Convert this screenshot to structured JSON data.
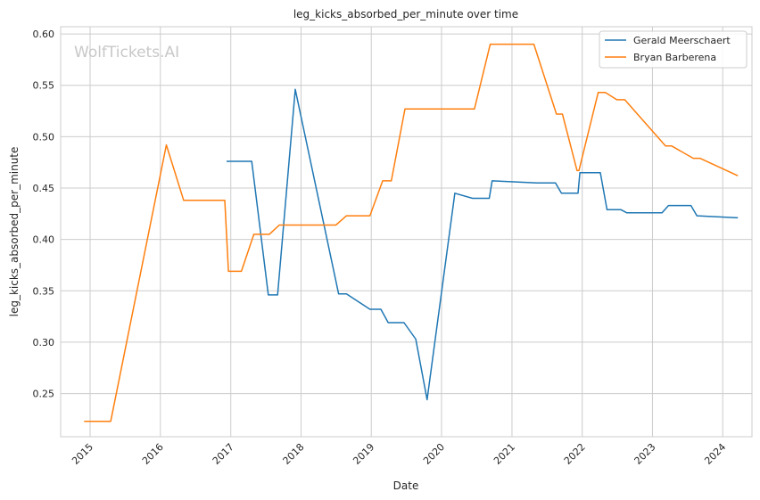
{
  "watermark": "WolfTickets.AI",
  "chart_data": {
    "type": "line",
    "title": "leg_kicks_absorbed_per_minute over time",
    "xlabel": "Date",
    "ylabel": "leg_kicks_absorbed_per_minute",
    "x_ticks": [
      "2015",
      "2016",
      "2017",
      "2018",
      "2019",
      "2020",
      "2021",
      "2022",
      "2023",
      "2024"
    ],
    "y_ticks": [
      "0.25",
      "0.30",
      "0.35",
      "0.40",
      "0.45",
      "0.50",
      "0.55",
      "0.60"
    ],
    "xlim": [
      "2014-08-01",
      "2024-06-01"
    ],
    "ylim": [
      0.208,
      0.607
    ],
    "grid": true,
    "legend_position": "top-right",
    "series": [
      {
        "name": "Gerald Meerschaert",
        "color": "#1f77b4",
        "points": [
          [
            "2016-12-10",
            0.476
          ],
          [
            "2017-04-20",
            0.476
          ],
          [
            "2017-07-15",
            0.346
          ],
          [
            "2017-09-01",
            0.346
          ],
          [
            "2017-12-02",
            0.546
          ],
          [
            "2018-07-15",
            0.347
          ],
          [
            "2018-08-25",
            0.347
          ],
          [
            "2018-12-25",
            0.332
          ],
          [
            "2019-02-20",
            0.332
          ],
          [
            "2019-03-30",
            0.319
          ],
          [
            "2019-06-20",
            0.319
          ],
          [
            "2019-08-20",
            0.303
          ],
          [
            "2019-10-18",
            0.244
          ],
          [
            "2020-03-10",
            0.445
          ],
          [
            "2020-06-10",
            0.44
          ],
          [
            "2020-09-05",
            0.44
          ],
          [
            "2020-09-20",
            0.457
          ],
          [
            "2021-05-10",
            0.455
          ],
          [
            "2021-08-15",
            0.455
          ],
          [
            "2021-09-15",
            0.445
          ],
          [
            "2021-12-10",
            0.445
          ],
          [
            "2021-12-20",
            0.465
          ],
          [
            "2022-04-05",
            0.465
          ],
          [
            "2022-05-10",
            0.429
          ],
          [
            "2022-07-20",
            0.429
          ],
          [
            "2022-08-20",
            0.426
          ],
          [
            "2023-02-20",
            0.426
          ],
          [
            "2023-03-25",
            0.433
          ],
          [
            "2023-07-20",
            0.433
          ],
          [
            "2023-08-20",
            0.423
          ],
          [
            "2024-03-20",
            0.421
          ]
        ]
      },
      {
        "name": "Bryan Barberena",
        "color": "#ff7f0e",
        "points": [
          [
            "2014-12-01",
            0.223
          ],
          [
            "2015-04-18",
            0.223
          ],
          [
            "2016-02-01",
            0.492
          ],
          [
            "2016-05-01",
            0.438
          ],
          [
            "2016-12-01",
            0.438
          ],
          [
            "2016-12-20",
            0.369
          ],
          [
            "2017-02-25",
            0.369
          ],
          [
            "2017-05-01",
            0.405
          ],
          [
            "2017-07-20",
            0.405
          ],
          [
            "2017-09-10",
            0.414
          ],
          [
            "2018-07-01",
            0.414
          ],
          [
            "2018-08-25",
            0.423
          ],
          [
            "2018-12-25",
            0.423
          ],
          [
            "2019-03-01",
            0.457
          ],
          [
            "2019-04-15",
            0.457
          ],
          [
            "2019-06-25",
            0.527
          ],
          [
            "2020-06-20",
            0.527
          ],
          [
            "2020-09-10",
            0.59
          ],
          [
            "2021-04-25",
            0.59
          ],
          [
            "2021-08-20",
            0.522
          ],
          [
            "2021-09-20",
            0.522
          ],
          [
            "2021-12-05",
            0.467
          ],
          [
            "2021-12-15",
            0.467
          ],
          [
            "2022-03-25",
            0.543
          ],
          [
            "2022-05-01",
            0.543
          ],
          [
            "2022-06-30",
            0.536
          ],
          [
            "2022-08-10",
            0.536
          ],
          [
            "2023-03-10",
            0.491
          ],
          [
            "2023-04-10",
            0.491
          ],
          [
            "2023-08-01",
            0.479
          ],
          [
            "2023-09-05",
            0.479
          ],
          [
            "2024-03-20",
            0.462
          ]
        ]
      }
    ]
  }
}
